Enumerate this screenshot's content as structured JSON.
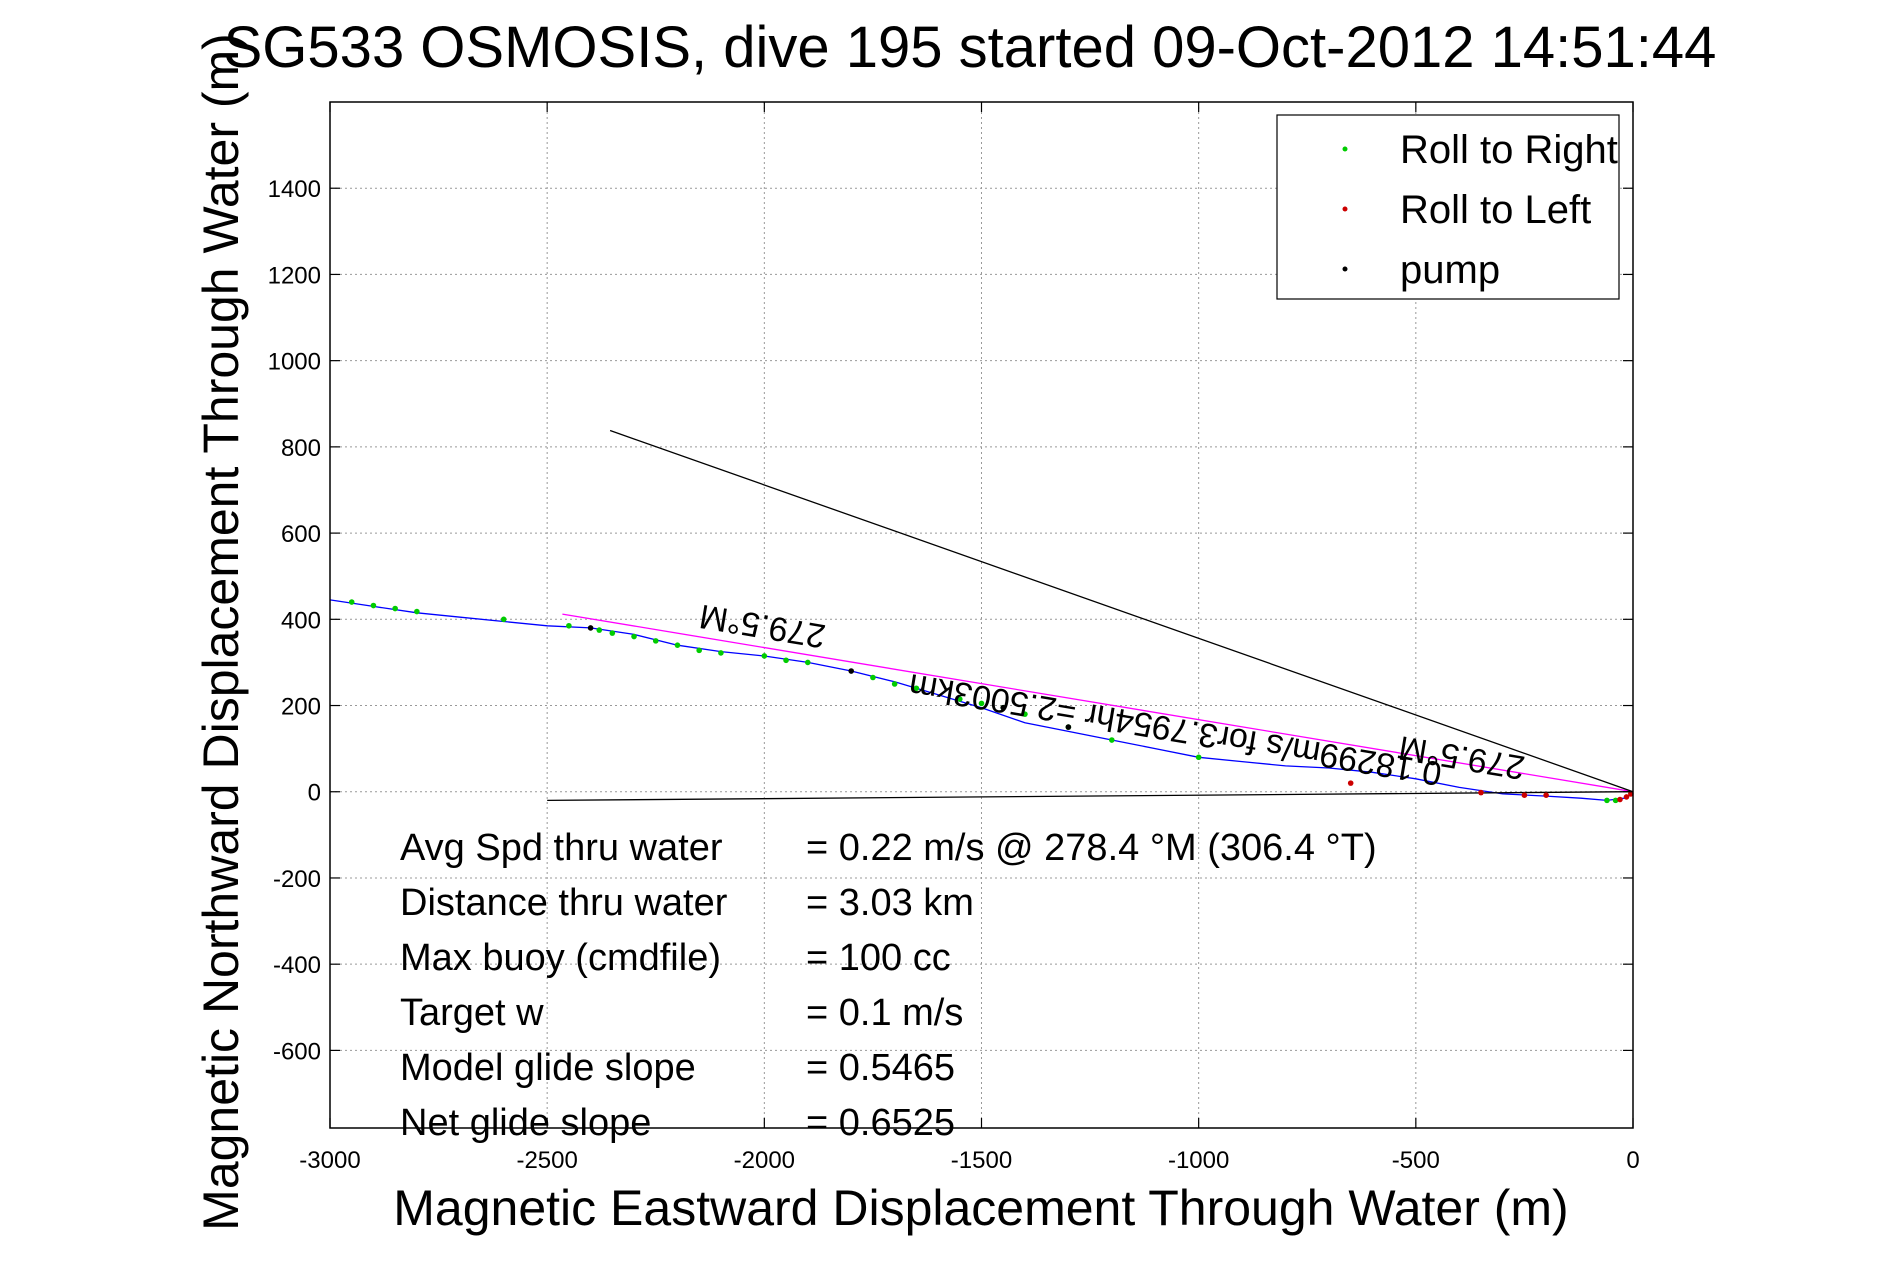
{
  "chart_data": {
    "type": "scatter",
    "title": "SG533 OSMOSIS, dive 195 started 09-Oct-2012 14:51:44",
    "xlabel": "Magnetic Eastward Displacement Through Water (m)",
    "ylabel": "Magnetic Northward Displacement Through Water (m)",
    "xlim": [
      -3000,
      0
    ],
    "ylim": [
      -780,
      1600
    ],
    "grid": true,
    "legend_position": "top-right",
    "x_ticks": [
      -3000,
      -2500,
      -2000,
      -1500,
      -1000,
      -500,
      0
    ],
    "y_ticks": [
      -600,
      -400,
      -200,
      0,
      200,
      400,
      600,
      800,
      1000,
      1200,
      1400
    ],
    "legend": [
      {
        "label": "Roll to Right",
        "color": "#00cc00"
      },
      {
        "label": "Roll to Left",
        "color": "#cc0000"
      },
      {
        "label": "pump",
        "color": "#000000"
      }
    ],
    "series": [
      {
        "kind": "line",
        "color": "#0000ff",
        "points": [
          [
            0,
            -5
          ],
          [
            -20,
            -15
          ],
          [
            -60,
            -20
          ],
          [
            -120,
            -15
          ],
          [
            -200,
            -10
          ],
          [
            -300,
            -5
          ],
          [
            -400,
            10
          ],
          [
            -500,
            30
          ],
          [
            -600,
            45
          ],
          [
            -700,
            55
          ],
          [
            -800,
            60
          ],
          [
            -900,
            70
          ],
          [
            -1000,
            80
          ],
          [
            -1100,
            100
          ],
          [
            -1200,
            120
          ],
          [
            -1300,
            140
          ],
          [
            -1400,
            160
          ],
          [
            -1500,
            195
          ],
          [
            -1600,
            225
          ],
          [
            -1700,
            255
          ],
          [
            -1800,
            280
          ],
          [
            -1900,
            300
          ],
          [
            -2000,
            315
          ],
          [
            -2100,
            325
          ],
          [
            -2200,
            340
          ],
          [
            -2300,
            365
          ],
          [
            -2400,
            380
          ],
          [
            -2500,
            385
          ],
          [
            -2600,
            395
          ],
          [
            -2700,
            405
          ],
          [
            -2800,
            415
          ],
          [
            -2900,
            430
          ],
          [
            -3000,
            445
          ]
        ]
      },
      {
        "kind": "line",
        "color": "#ff00ff",
        "points": [
          [
            0,
            0
          ],
          [
            -2465,
            412
          ]
        ]
      },
      {
        "kind": "line",
        "color": "#000000",
        "points": [
          [
            0,
            0
          ],
          [
            -2355,
            838
          ]
        ]
      },
      {
        "kind": "line",
        "color": "#000000",
        "points": [
          [
            0,
            0
          ],
          [
            -2500,
            -20
          ]
        ]
      },
      {
        "kind": "points",
        "name": "Roll to Right",
        "color": "#00cc00",
        "points": [
          [
            -2950,
            440
          ],
          [
            -2900,
            432
          ],
          [
            -2850,
            425
          ],
          [
            -2800,
            418
          ],
          [
            -2600,
            400
          ],
          [
            -2450,
            385
          ],
          [
            -2380,
            375
          ],
          [
            -2350,
            368
          ],
          [
            -2300,
            360
          ],
          [
            -2250,
            350
          ],
          [
            -2200,
            340
          ],
          [
            -2150,
            328
          ],
          [
            -2100,
            322
          ],
          [
            -2000,
            315
          ],
          [
            -1950,
            305
          ],
          [
            -1900,
            300
          ],
          [
            -1750,
            265
          ],
          [
            -1700,
            250
          ],
          [
            -1650,
            240
          ],
          [
            -1550,
            215
          ],
          [
            -1500,
            205
          ],
          [
            -1450,
            195
          ],
          [
            -1400,
            180
          ],
          [
            -1300,
            150
          ],
          [
            -1200,
            120
          ],
          [
            -1000,
            80
          ],
          [
            -60,
            -20
          ],
          [
            -40,
            -20
          ]
        ]
      },
      {
        "kind": "points",
        "name": "Roll to Left",
        "color": "#cc0000",
        "points": [
          [
            -650,
            20
          ],
          [
            -350,
            -2
          ],
          [
            -250,
            -8
          ],
          [
            -200,
            -8
          ],
          [
            -30,
            -18
          ],
          [
            -15,
            -12
          ],
          [
            -5,
            -5
          ]
        ]
      },
      {
        "kind": "points",
        "name": "pump",
        "color": "#000000",
        "points": [
          [
            -2400,
            380
          ],
          [
            -1800,
            280
          ],
          [
            -1450,
            195
          ],
          [
            -1300,
            150
          ]
        ]
      }
    ],
    "annotations": [
      {
        "text": "279.5°M",
        "x": -2000,
        "y": 410,
        "rotation": 189.5
      },
      {
        "text": "0.18299m/s for3.7954hr =2.5003km",
        "x": -1050,
        "y": 170,
        "rotation": 189.5
      },
      {
        "text": "279.5°M",
        "x": -390,
        "y": 105,
        "rotation": 189.5
      }
    ]
  },
  "stats": [
    {
      "label": "Avg Spd thru water",
      "value": "=  0.22 m/s @ 278.4 °M (306.4 °T)"
    },
    {
      "label": "Distance thru water",
      "value": "=  3.03 km"
    },
    {
      "label": "Max buoy (cmdfile)",
      "value": "= 100 cc"
    },
    {
      "label": "Target w",
      "value": "= 0.1 m/s"
    },
    {
      "label": "Model glide slope",
      "value": "= 0.5465"
    },
    {
      "label": "Net glide slope",
      "value": "= 0.6525"
    }
  ]
}
